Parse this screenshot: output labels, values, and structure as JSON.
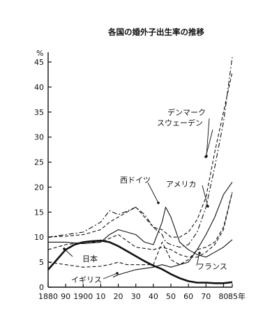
{
  "chart_data": {
    "type": "line",
    "title": "各国の婚外子出生率の推移",
    "ylabel": "%",
    "xlabel": "年",
    "xlim": [
      1880,
      1985
    ],
    "ylim": [
      0,
      47
    ],
    "x_ticks": [
      1880,
      1890,
      1900,
      1910,
      1920,
      1930,
      1940,
      1950,
      1960,
      1970,
      1980,
      1985
    ],
    "x_tick_labels": [
      "1880",
      "90",
      "1900",
      "10",
      "20",
      "30",
      "40",
      "50",
      "60",
      "70",
      "80",
      "85年"
    ],
    "y_ticks": [
      0,
      5,
      10,
      15,
      20,
      25,
      30,
      35,
      40,
      45
    ],
    "grid": false,
    "legend": "inline labels",
    "series": [
      {
        "name": "デンマーク",
        "style": "dash-dot",
        "x": [
          1880,
          1890,
          1900,
          1905,
          1910,
          1915,
          1920,
          1925,
          1930,
          1935,
          1940,
          1945,
          1947,
          1950,
          1955,
          1960,
          1965,
          1970,
          1975,
          1980,
          1985
        ],
        "y": [
          10,
          10.5,
          11,
          12,
          13,
          15.3,
          14.5,
          15.2,
          16,
          14.5,
          12,
          10.5,
          9,
          8.5,
          8,
          8.5,
          11,
          16,
          24,
          33,
          46
        ]
      },
      {
        "name": "スウェーデン",
        "style": "dash",
        "x": [
          1880,
          1890,
          1900,
          1910,
          1915,
          1920,
          1925,
          1930,
          1935,
          1940,
          1945,
          1950,
          1955,
          1960,
          1965,
          1970,
          1975,
          1980,
          1985
        ],
        "y": [
          10,
          10.2,
          10.5,
          11.5,
          13,
          14,
          15,
          16,
          14,
          12,
          11.5,
          10,
          10,
          11,
          13.5,
          18,
          27,
          35,
          43
        ]
      },
      {
        "name": "西ドイツ",
        "style": "solid",
        "x": [
          1880,
          1890,
          1900,
          1910,
          1915,
          1920,
          1925,
          1930,
          1935,
          1940,
          1945,
          1947,
          1950,
          1955,
          1960,
          1965,
          1970,
          1975,
          1980,
          1985
        ],
        "y": [
          9,
          9,
          8.7,
          9,
          10.5,
          11.5,
          11,
          10.5,
          9,
          8.5,
          13,
          16,
          14,
          9,
          7.5,
          6.5,
          6,
          7,
          8,
          9.5
        ]
      },
      {
        "name": "アメリカ",
        "style": "solid",
        "x": [
          1917,
          1920,
          1930,
          1940,
          1945,
          1950,
          1955,
          1960,
          1965,
          1970,
          1975,
          1980,
          1985
        ],
        "y": [
          2,
          2.5,
          3.5,
          4,
          4.5,
          4,
          4.5,
          5,
          7.5,
          10.5,
          14,
          18.5,
          21
        ]
      },
      {
        "name": "フランス",
        "style": "dash",
        "x": [
          1880,
          1890,
          1900,
          1910,
          1920,
          1930,
          1940,
          1945,
          1950,
          1955,
          1960,
          1965,
          1970,
          1975,
          1980,
          1985
        ],
        "y": [
          7.5,
          8.5,
          9,
          9,
          10.5,
          8,
          7.5,
          8,
          7.5,
          6.5,
          6,
          6,
          7,
          8.5,
          11.5,
          19
        ]
      },
      {
        "name": "日本",
        "style": "solid-bold",
        "x": [
          1880,
          1885,
          1890,
          1895,
          1900,
          1905,
          1910,
          1915,
          1920,
          1925,
          1930,
          1935,
          1940,
          1945,
          1950,
          1955,
          1960,
          1965,
          1970,
          1975,
          1980,
          1985
        ],
        "y": [
          3.5,
          5.5,
          7.5,
          8.5,
          9,
          9.2,
          9.3,
          9,
          8.2,
          7.2,
          6.2,
          5.2,
          4.3,
          3.6,
          2.6,
          1.8,
          1.2,
          0.9,
          0.9,
          0.8,
          0.8,
          1
        ]
      },
      {
        "name": "イギリス",
        "style": "dash",
        "x": [
          1880,
          1890,
          1900,
          1910,
          1915,
          1920,
          1925,
          1930,
          1935,
          1940,
          1945,
          1950,
          1955,
          1960,
          1965,
          1970,
          1975,
          1980,
          1985
        ],
        "y": [
          5,
          4.5,
          4,
          4.2,
          4.5,
          5,
          4.5,
          4.5,
          4.5,
          4.5,
          9,
          5.5,
          4.5,
          5.5,
          7.5,
          8,
          9,
          12,
          19
        ]
      }
    ],
    "annotations": [
      "デンマーク",
      "スウェーデン",
      "西ドイツ",
      "アメリカ",
      "フランス",
      "日本",
      "イギリス"
    ]
  }
}
